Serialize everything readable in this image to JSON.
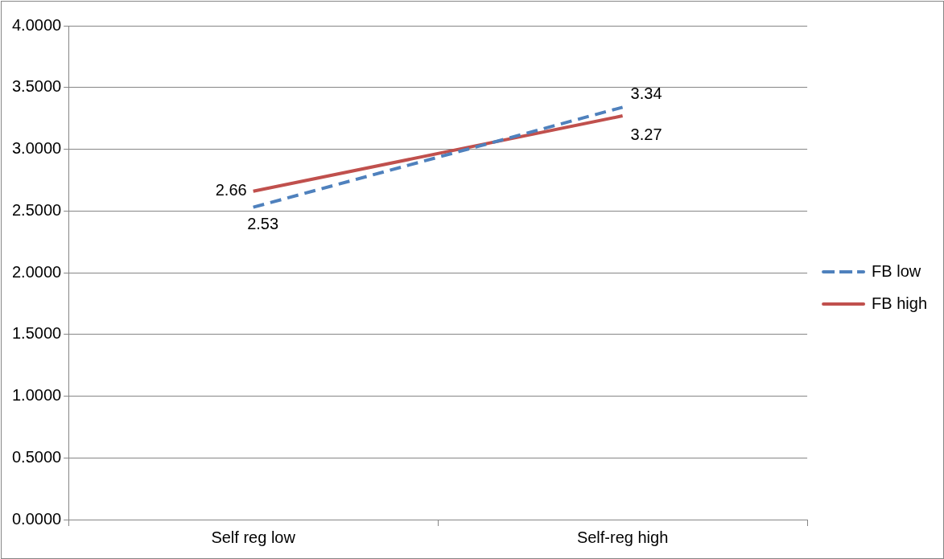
{
  "chart_data": {
    "type": "line",
    "categories": [
      "Self reg low",
      "Self-reg high"
    ],
    "series": [
      {
        "name": "FB low",
        "color": "#4f81bd",
        "values": [
          2.53,
          3.34
        ],
        "line_style": "dashed"
      },
      {
        "name": "FB high",
        "color": "#c0504d",
        "values": [
          2.66,
          3.27
        ],
        "line_style": "solid"
      }
    ],
    "ylim": [
      0,
      4
    ],
    "yticks": [
      {
        "value": 0,
        "label": "0.0000"
      },
      {
        "value": 0.5,
        "label": "0.5000"
      },
      {
        "value": 1,
        "label": "1.0000"
      },
      {
        "value": 1.5,
        "label": "1.5000"
      },
      {
        "value": 2,
        "label": "2.0000"
      },
      {
        "value": 2.5,
        "label": "2.5000"
      },
      {
        "value": 3,
        "label": "3.0000"
      },
      {
        "value": 3.5,
        "label": "3.5000"
      },
      {
        "value": 4,
        "label": "4.0000"
      }
    ],
    "grid": "y",
    "legend": "right",
    "marker": "none",
    "data_labels": true
  }
}
